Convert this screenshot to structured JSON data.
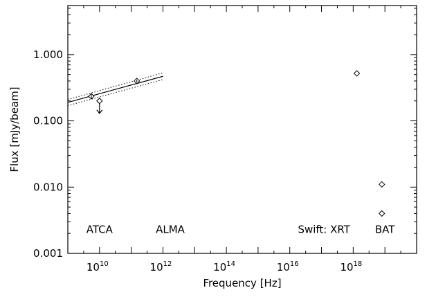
{
  "chart_data": {
    "type": "scatter",
    "title": "",
    "xlabel": "Frequency [Hz]",
    "ylabel": "Flux [mJy/beam]",
    "x_scale": "log",
    "y_scale": "log",
    "xlim": [
      1000000000.0,
      1e+20
    ],
    "ylim": [
      0.001,
      5.5
    ],
    "grid": false,
    "x_ticks": [
      {
        "value": 10000000000.0,
        "base": "10",
        "exp": "10"
      },
      {
        "value": 1000000000000.0,
        "base": "10",
        "exp": "12"
      },
      {
        "value": 100000000000000.0,
        "base": "10",
        "exp": "14"
      },
      {
        "value": 1e+16,
        "base": "10",
        "exp": "16"
      },
      {
        "value": 1e+18,
        "base": "10",
        "exp": "18"
      }
    ],
    "y_ticks": [
      {
        "value": 0.001,
        "label": "0.001"
      },
      {
        "value": 0.01,
        "label": "0.010"
      },
      {
        "value": 0.1,
        "label": "0.100"
      },
      {
        "value": 1.0,
        "label": "1.000"
      }
    ],
    "points": [
      {
        "x": 5500000000.0,
        "y": 0.235,
        "yerr_low": 0.02,
        "yerr_high": 0.02,
        "upper_limit": false
      },
      {
        "x": 10000000000.0,
        "y": 0.2,
        "upper_limit": true
      },
      {
        "x": 150000000000.0,
        "y": 0.4,
        "yerr_low": 0.02,
        "yerr_high": 0.02,
        "upper_limit": false
      },
      {
        "x": 1.3e+18,
        "y": 0.52,
        "upper_limit": false
      },
      {
        "x": 8e+18,
        "y": 0.011,
        "upper_limit": false
      },
      {
        "x": 8e+18,
        "y": 0.004,
        "upper_limit": false
      }
    ],
    "fit": {
      "x_range": [
        1000000000.0,
        1000000000000.0
      ],
      "best": [
        0.19,
        0.47
      ],
      "upper": [
        0.21,
        0.53
      ],
      "lower": [
        0.17,
        0.42
      ]
    },
    "annotations": [
      {
        "text": "ATCA",
        "x": 10000000000.0,
        "y": 0.00203
      },
      {
        "text": "ALMA",
        "x": 1700000000000.0,
        "y": 0.00203
      },
      {
        "text": "Swift: XRT",
        "x": 1.2e+17,
        "y": 0.00203
      },
      {
        "text": "BAT",
        "x": 1e+19,
        "y": 0.00203
      }
    ]
  }
}
